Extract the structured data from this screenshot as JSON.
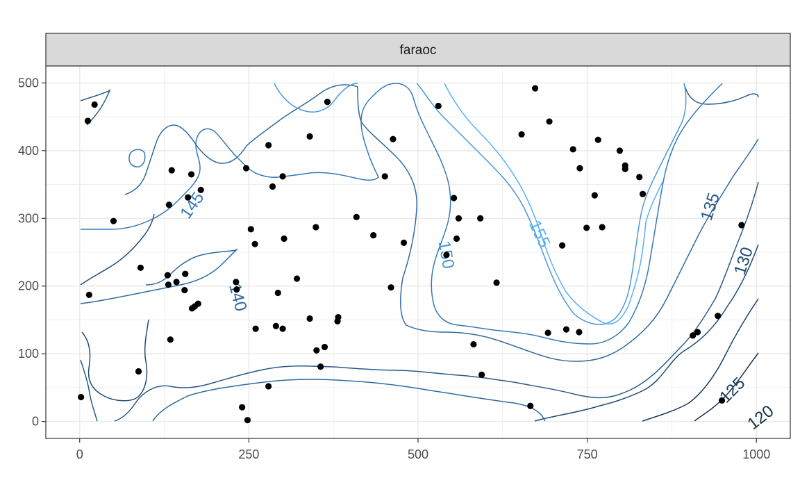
{
  "chart_data": {
    "type": "scatter",
    "facet_label": "faraoc",
    "xlim": [
      -50,
      1050
    ],
    "ylim": [
      -25,
      525
    ],
    "x_ticks": [
      0,
      250,
      500,
      750,
      1000
    ],
    "y_ticks": [
      0,
      100,
      200,
      300,
      400,
      500
    ],
    "x_tick_labels": [
      "0",
      "250",
      "500",
      "750",
      "1000"
    ],
    "y_tick_labels": [
      "0",
      "100",
      "200",
      "300",
      "400",
      "500"
    ],
    "grid": true,
    "colors": {
      "strip_fill": "#d9d9d9",
      "grid": "#ebebeb",
      "points": "#000000",
      "contour_low": "#132b43",
      "contour_high": "#56b1f7"
    },
    "points": [
      [
        2,
        36
      ],
      [
        12,
        444
      ],
      [
        14,
        187
      ],
      [
        22,
        468
      ],
      [
        50,
        296
      ],
      [
        87,
        74
      ],
      [
        90,
        227
      ],
      [
        130,
        216
      ],
      [
        131,
        202
      ],
      [
        132,
        320
      ],
      [
        134,
        121
      ],
      [
        136,
        371
      ],
      [
        143,
        206
      ],
      [
        155,
        194
      ],
      [
        156,
        218
      ],
      [
        160,
        331
      ],
      [
        165,
        365
      ],
      [
        166,
        167
      ],
      [
        170,
        170
      ],
      [
        175,
        174
      ],
      [
        179,
        342
      ],
      [
        231,
        206
      ],
      [
        232,
        195
      ],
      [
        240,
        21
      ],
      [
        246,
        374
      ],
      [
        248,
        2
      ],
      [
        253,
        284
      ],
      [
        259,
        262
      ],
      [
        260,
        137
      ],
      [
        279,
        408
      ],
      [
        279,
        52
      ],
      [
        285,
        347
      ],
      [
        290,
        141
      ],
      [
        293,
        190
      ],
      [
        300,
        137
      ],
      [
        300,
        362
      ],
      [
        302,
        270
      ],
      [
        321,
        211
      ],
      [
        340,
        152
      ],
      [
        340,
        421
      ],
      [
        349,
        287
      ],
      [
        350,
        105
      ],
      [
        356,
        81
      ],
      [
        362,
        110
      ],
      [
        366,
        472
      ],
      [
        381,
        148
      ],
      [
        382,
        154
      ],
      [
        409,
        302
      ],
      [
        434,
        275
      ],
      [
        451,
        362
      ],
      [
        460,
        198
      ],
      [
        463,
        417
      ],
      [
        479,
        264
      ],
      [
        530,
        466
      ],
      [
        542,
        246
      ],
      [
        553,
        330
      ],
      [
        557,
        270
      ],
      [
        560,
        300
      ],
      [
        582,
        114
      ],
      [
        592,
        300
      ],
      [
        594,
        69
      ],
      [
        616,
        205
      ],
      [
        653,
        424
      ],
      [
        666,
        23
      ],
      [
        673,
        492
      ],
      [
        692,
        131
      ],
      [
        694,
        443
      ],
      [
        713,
        260
      ],
      [
        719,
        136
      ],
      [
        729,
        402
      ],
      [
        738,
        132
      ],
      [
        739,
        374
      ],
      [
        749,
        286
      ],
      [
        761,
        334
      ],
      [
        766,
        416
      ],
      [
        772,
        287
      ],
      [
        798,
        400
      ],
      [
        806,
        378
      ],
      [
        806,
        373
      ],
      [
        827,
        361
      ],
      [
        832,
        336
      ],
      [
        906,
        127
      ],
      [
        913,
        132
      ],
      [
        943,
        156
      ],
      [
        949,
        31
      ],
      [
        978,
        290
      ]
    ],
    "contours": [
      {
        "level": 120,
        "label": "120"
      },
      {
        "level": 125,
        "label": "125"
      },
      {
        "level": 130,
        "label": "130"
      },
      {
        "level": 135,
        "label": "135"
      },
      {
        "level": 140,
        "label": "140"
      },
      {
        "level": 145,
        "label": "145"
      },
      {
        "level": 150,
        "label": "150"
      },
      {
        "level": 155,
        "label": "155"
      }
    ]
  }
}
